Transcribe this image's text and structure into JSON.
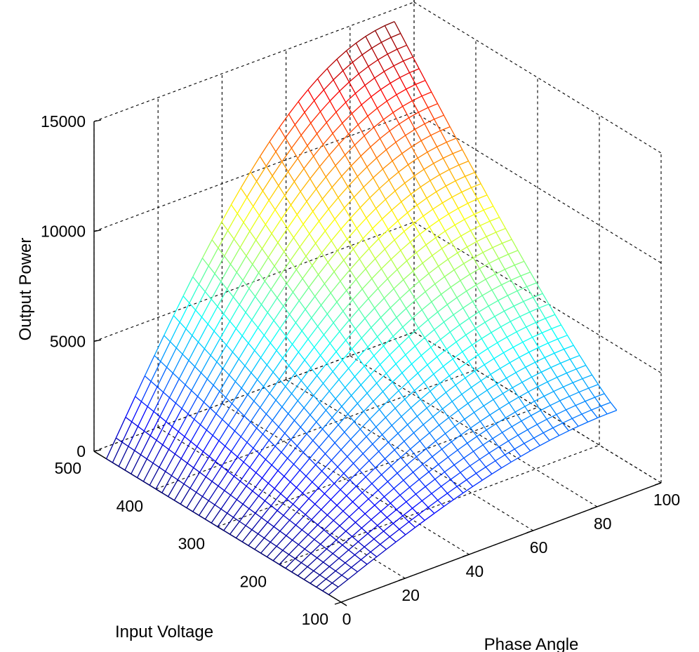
{
  "chart_data": {
    "type": "surface-mesh-3d",
    "title": "",
    "xlabel": "Phase Angle",
    "ylabel": "Input Voltage",
    "zlabel": "Output Power",
    "xlim": [
      0,
      100
    ],
    "ylim": [
      100,
      500
    ],
    "zlim": [
      0,
      15000
    ],
    "x_ticks": [
      "0",
      "20",
      "40",
      "60",
      "80",
      "100"
    ],
    "y_ticks": [
      "100",
      "200",
      "300",
      "400",
      "500"
    ],
    "z_ticks": [
      "0",
      "5000",
      "10000",
      "15000"
    ],
    "grid": true,
    "colormap": "jet",
    "surface": {
      "phase_angle_range": [
        0,
        90
      ],
      "input_voltage_range": [
        120,
        480
      ],
      "samples": [
        {
          "phase_angle": 0,
          "input_voltage": 480,
          "output_power": 0
        },
        {
          "phase_angle": 0,
          "input_voltage": 120,
          "output_power": 0
        },
        {
          "phase_angle": 90,
          "input_voltage": 120,
          "output_power": 3500
        },
        {
          "phase_angle": 90,
          "input_voltage": 480,
          "output_power": 15000
        }
      ]
    }
  }
}
